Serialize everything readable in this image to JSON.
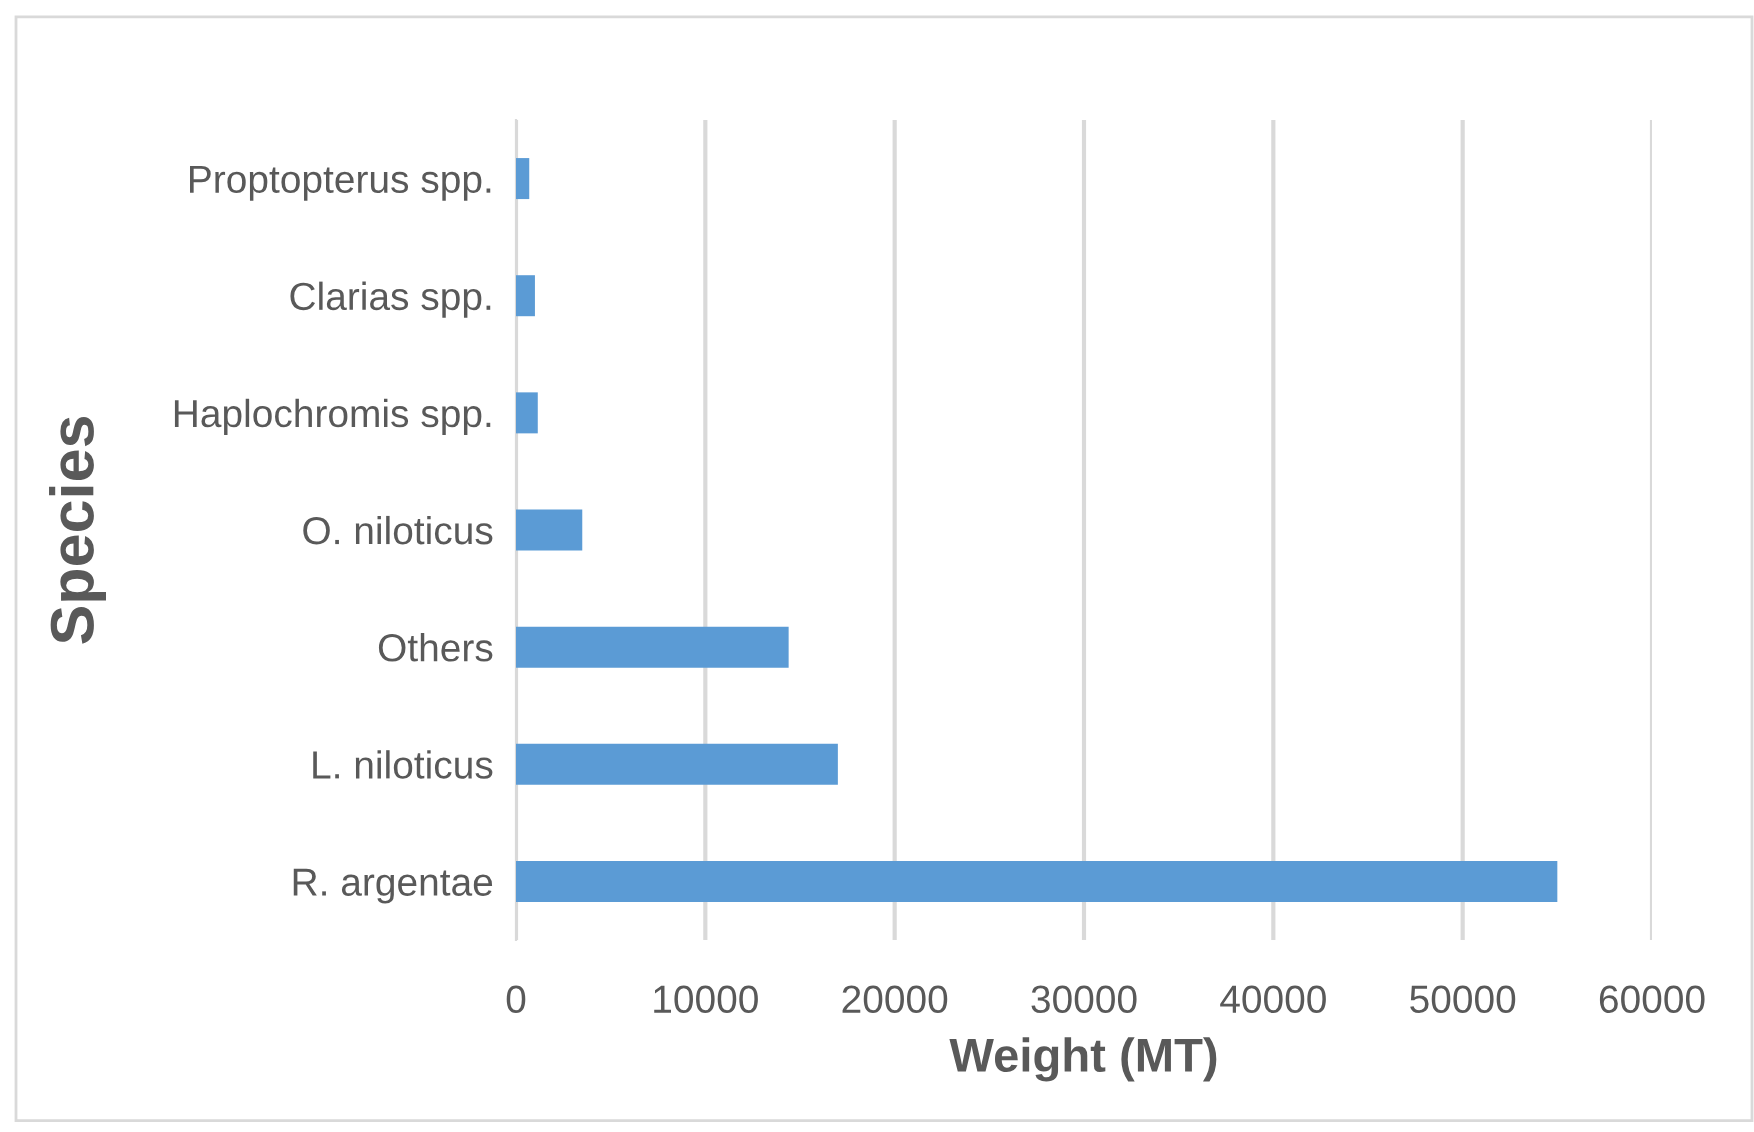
{
  "chart_data": {
    "type": "bar",
    "orientation": "horizontal",
    "xlabel": "Weight (MT)",
    "ylabel": "Species",
    "categories": [
      "Proptopterus spp.",
      "Clarias spp.",
      "Haplochromis spp.",
      "O. niloticus",
      "Others",
      "L. niloticus",
      "R. argentae"
    ],
    "values": [
      700,
      1000,
      1150,
      3500,
      14400,
      17000,
      55000
    ],
    "color": "#5b9bd5",
    "xlim": [
      0,
      60000
    ],
    "xticks": [
      0,
      10000,
      20000,
      30000,
      40000,
      50000,
      60000
    ],
    "grid": "x",
    "legend": false
  }
}
